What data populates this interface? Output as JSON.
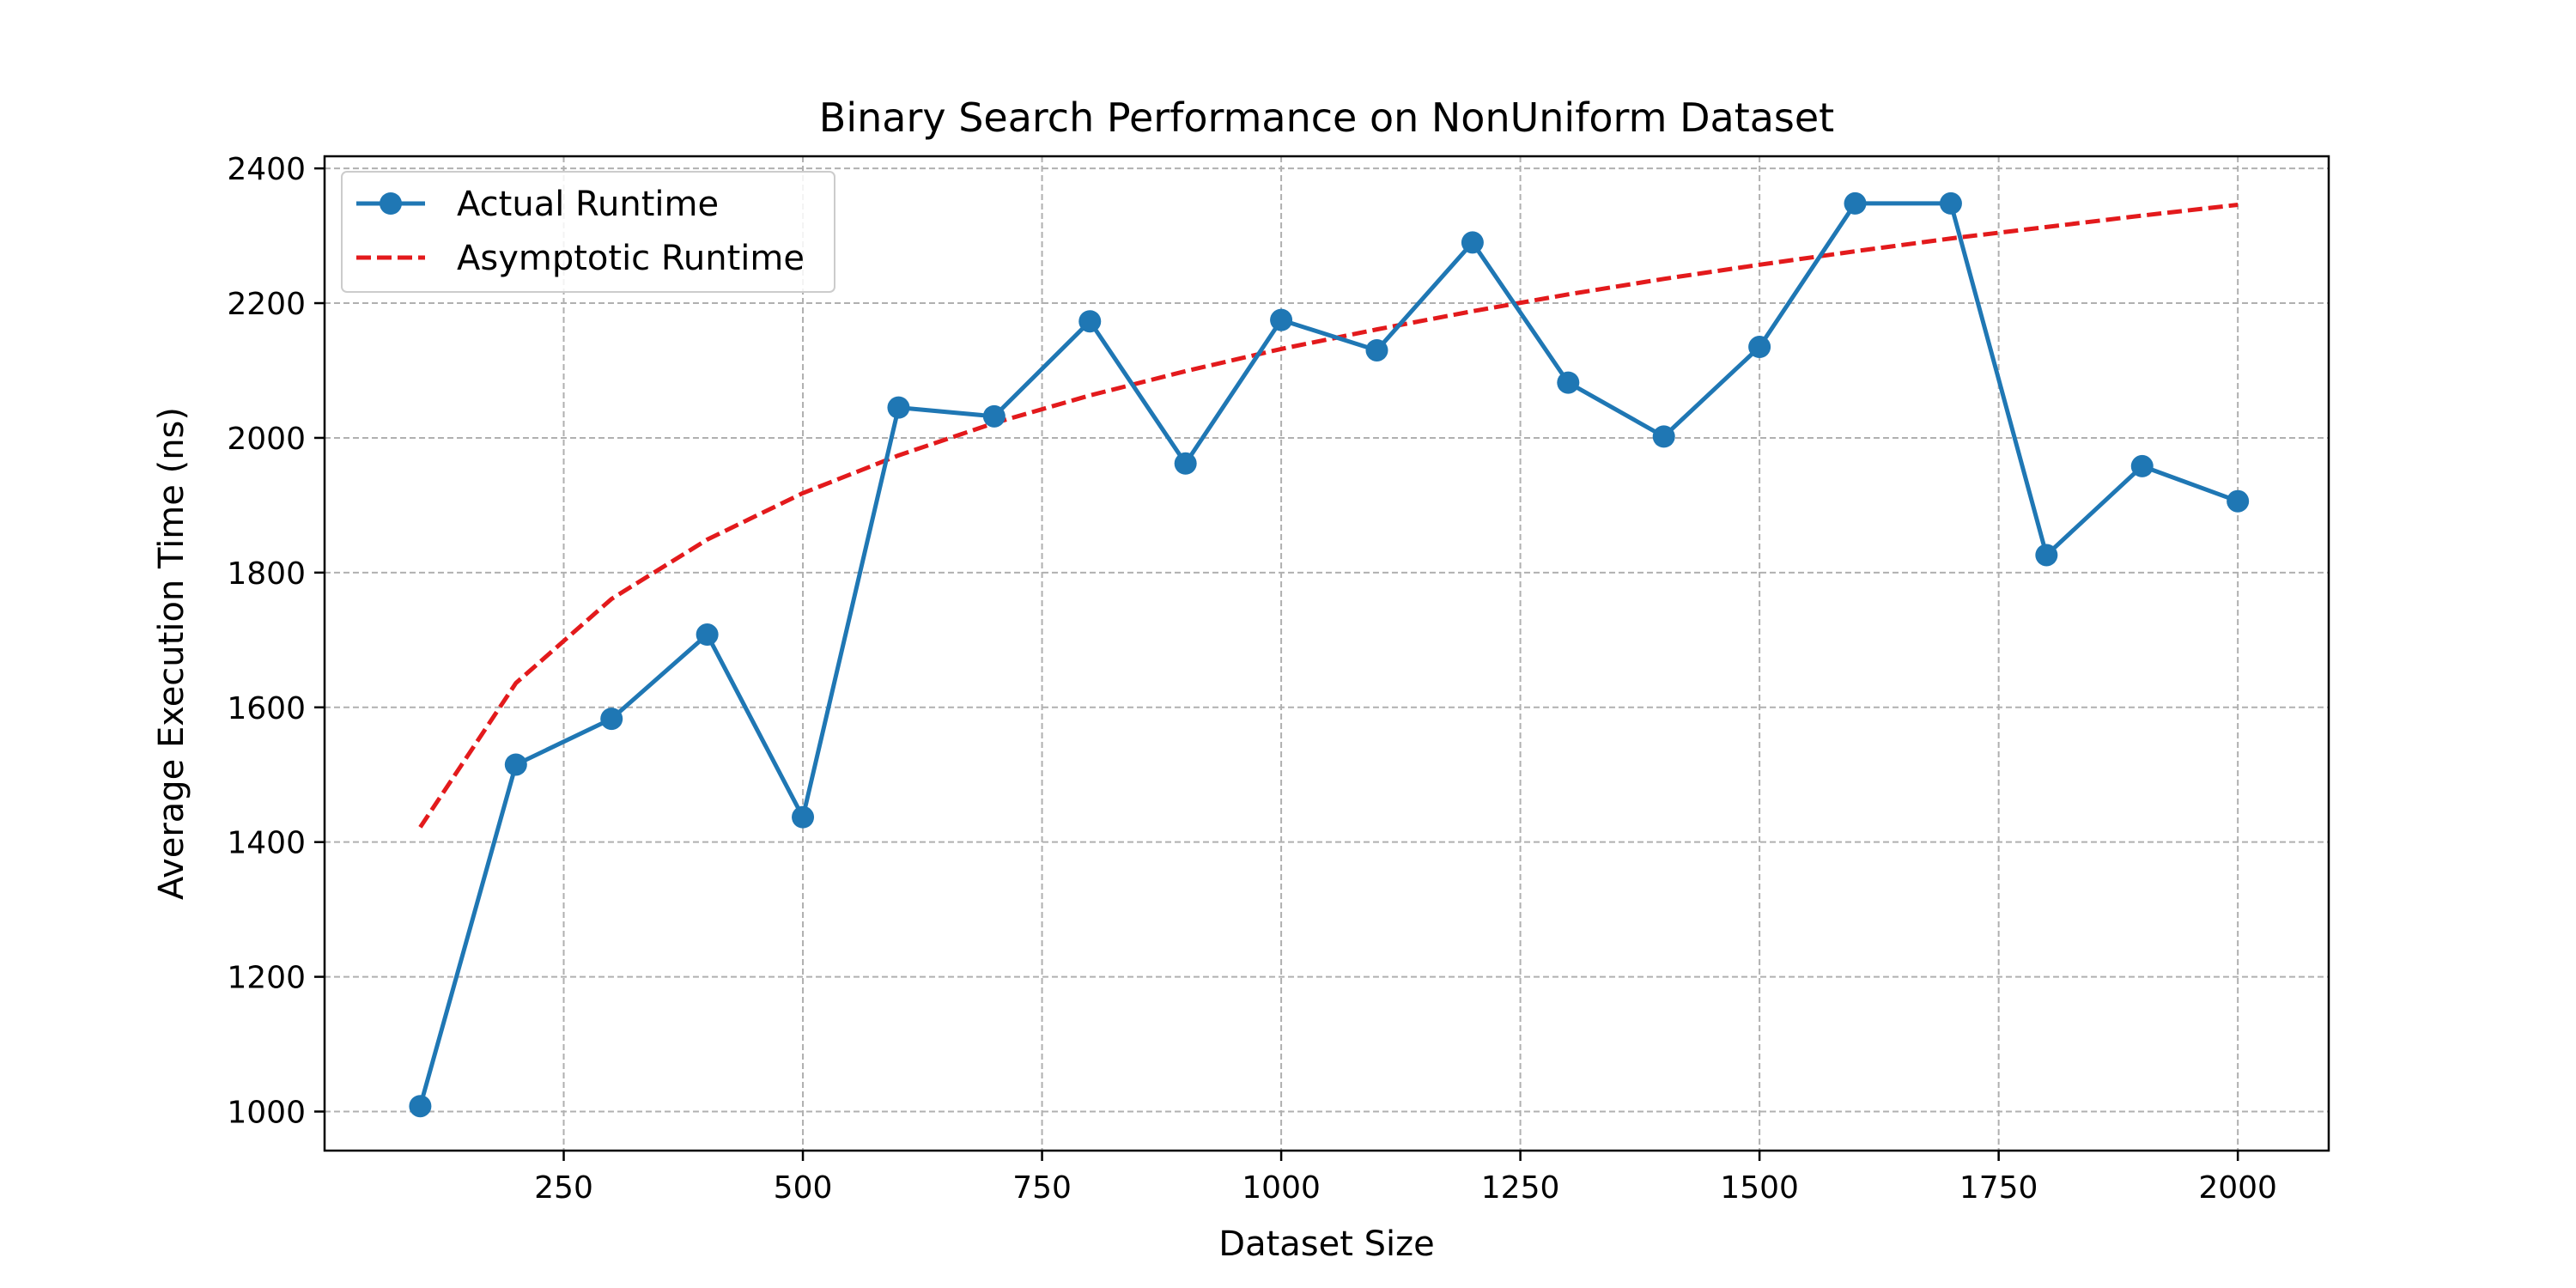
{
  "chart_data": {
    "type": "line",
    "title": "Binary Search Performance on NonUniform Dataset",
    "xlabel": "Dataset Size",
    "ylabel": "Average Execution Time (ns)",
    "xlim": [
      0,
      2095
    ],
    "ylim": [
      942,
      2418
    ],
    "xticks": [
      250,
      500,
      750,
      1000,
      1250,
      1500,
      1750,
      2000
    ],
    "yticks": [
      1000,
      1200,
      1400,
      1600,
      1800,
      2000,
      2200,
      2400
    ],
    "grid": true,
    "legend_position": "top-left",
    "series": [
      {
        "name": "Actual Runtime",
        "style": "solid-with-markers",
        "color": "#1f77b4",
        "x": [
          100,
          200,
          300,
          400,
          500,
          600,
          700,
          800,
          900,
          1000,
          1100,
          1200,
          1300,
          1400,
          1500,
          1600,
          1700,
          1800,
          1900,
          2000
        ],
        "y": [
          1008,
          1515,
          1583,
          1708,
          1437,
          2045,
          2032,
          2173,
          1962,
          2175,
          2130,
          2290,
          2082,
          2002,
          2135,
          2348,
          2348,
          1826,
          1958,
          1906
        ]
      },
      {
        "name": "Asymptotic Runtime",
        "style": "dashed",
        "color": "#e31a1c",
        "x": [
          100,
          200,
          300,
          400,
          500,
          600,
          700,
          800,
          900,
          1000,
          1100,
          1200,
          1300,
          1400,
          1500,
          1600,
          1700,
          1800,
          1900,
          2000
        ],
        "y": [
          1422,
          1636,
          1761,
          1849,
          1918,
          1974,
          2022,
          2063,
          2099,
          2132,
          2161,
          2188,
          2213,
          2236,
          2257,
          2277,
          2296,
          2313,
          2330,
          2346
        ]
      }
    ]
  }
}
